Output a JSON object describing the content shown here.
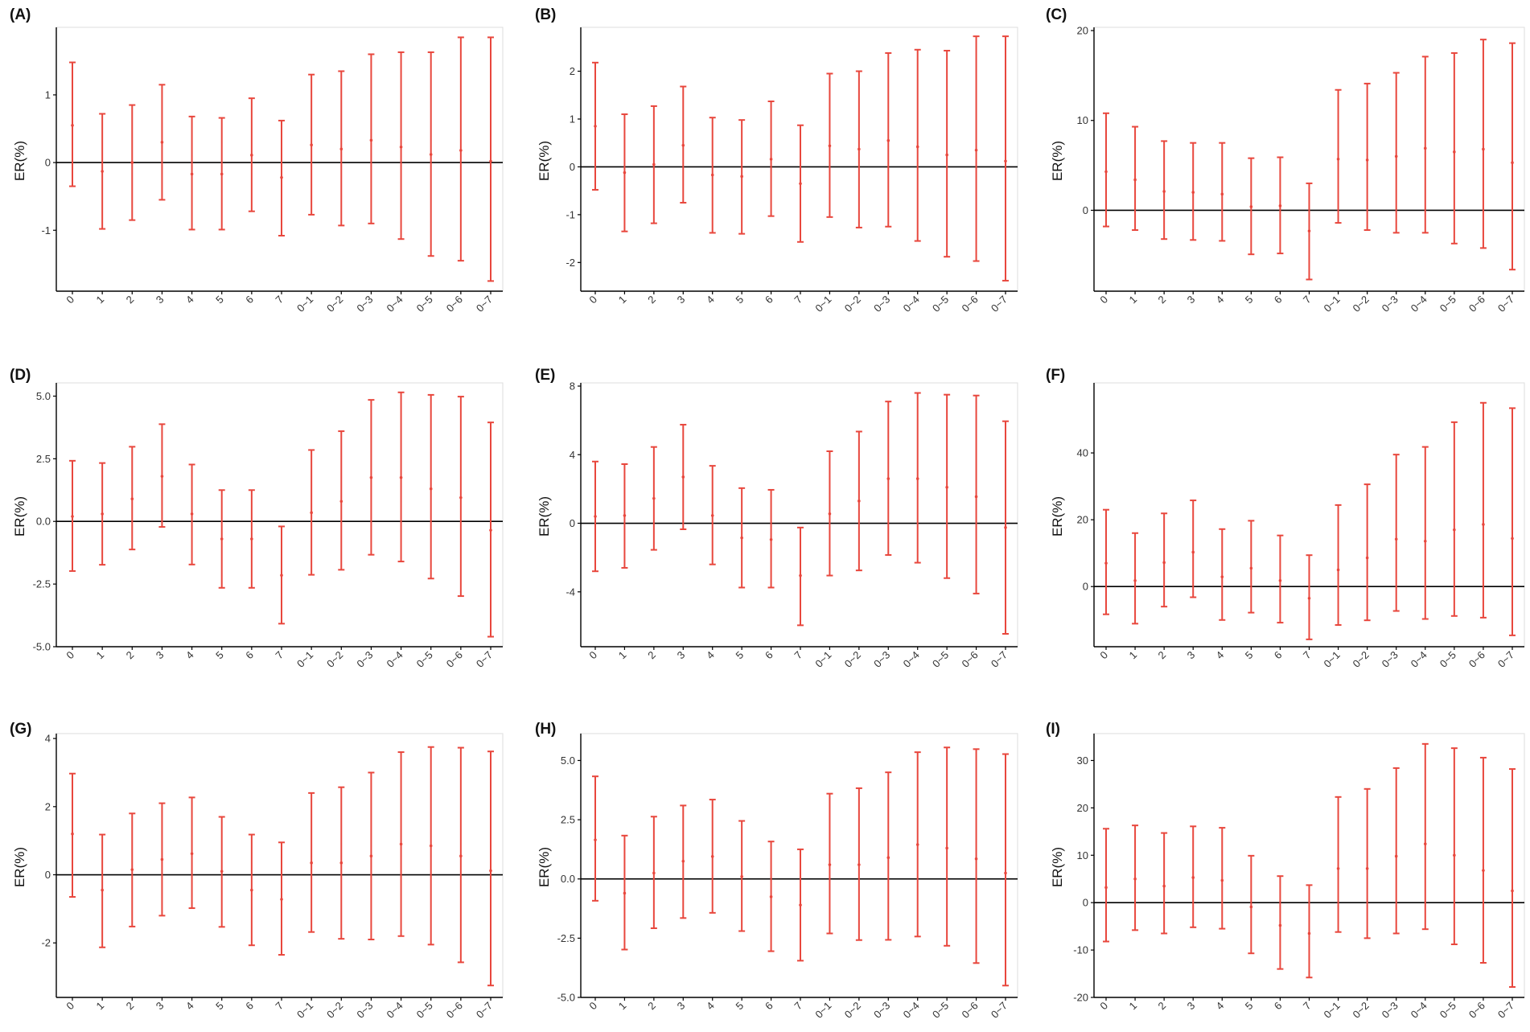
{
  "colors": {
    "error_bar": "#E8473D",
    "zero_line": "#000000",
    "axis": "#000000",
    "panel_border": "#dddddd"
  },
  "chart_data": [
    {
      "type": "errorbar",
      "label": "(A)",
      "ylabel": "ER(%)",
      "categories": [
        "0",
        "1",
        "2",
        "3",
        "4",
        "5",
        "6",
        "7",
        "0~1",
        "0~2",
        "0~3",
        "0~4",
        "0~5",
        "0~6",
        "0~7"
      ],
      "yticks": [
        {
          "v": 1,
          "t": "1"
        },
        {
          "v": 0,
          "t": "0"
        },
        {
          "v": -1,
          "t": "-1"
        }
      ],
      "ylim": [
        -1.9,
        1.95
      ],
      "estimate": [
        0.55,
        -0.13,
        0.0,
        0.3,
        -0.17,
        -0.17,
        0.11,
        -0.22,
        0.26,
        0.2,
        0.33,
        0.23,
        0.12,
        0.18,
        0.02
      ],
      "lower": [
        -0.35,
        -0.98,
        -0.85,
        -0.55,
        -0.99,
        -0.99,
        -0.72,
        -1.08,
        -0.77,
        -0.93,
        -0.9,
        -1.13,
        -1.38,
        -1.45,
        -1.75
      ],
      "upper": [
        1.48,
        0.72,
        0.85,
        1.15,
        0.68,
        0.66,
        0.95,
        0.62,
        1.3,
        1.35,
        1.6,
        1.63,
        1.63,
        1.85,
        1.85
      ]
    },
    {
      "type": "errorbar",
      "label": "(B)",
      "ylabel": "ER(%)",
      "categories": [
        "0",
        "1",
        "2",
        "3",
        "4",
        "5",
        "6",
        "7",
        "0~1",
        "0~2",
        "0~3",
        "0~4",
        "0~5",
        "0~6",
        "0~7"
      ],
      "yticks": [
        {
          "v": 2,
          "t": "2"
        },
        {
          "v": 1,
          "t": "1"
        },
        {
          "v": 0,
          "t": "0"
        },
        {
          "v": -1,
          "t": "-1"
        },
        {
          "v": -2,
          "t": "-2"
        }
      ],
      "ylim": [
        -2.6,
        2.85
      ],
      "estimate": [
        0.85,
        -0.12,
        0.05,
        0.45,
        -0.17,
        -0.2,
        0.16,
        -0.35,
        0.44,
        0.37,
        0.55,
        0.42,
        0.25,
        0.35,
        0.12
      ],
      "lower": [
        -0.48,
        -1.35,
        -1.18,
        -0.75,
        -1.38,
        -1.4,
        -1.03,
        -1.57,
        -1.05,
        -1.27,
        -1.25,
        -1.55,
        -1.88,
        -1.97,
        -2.38
      ],
      "upper": [
        2.18,
        1.1,
        1.27,
        1.68,
        1.03,
        0.98,
        1.37,
        0.87,
        1.95,
        2.0,
        2.38,
        2.45,
        2.43,
        2.73,
        2.73
      ]
    },
    {
      "type": "errorbar",
      "label": "(C)",
      "ylabel": "ER(%)",
      "categories": [
        "0",
        "1",
        "2",
        "3",
        "4",
        "5",
        "6",
        "7",
        "0~1",
        "0~2",
        "0~3",
        "0~4",
        "0~5",
        "0~6",
        "0~7"
      ],
      "yticks": [
        {
          "v": 20,
          "t": "20"
        },
        {
          "v": 10,
          "t": "10"
        },
        {
          "v": 0,
          "t": "0"
        }
      ],
      "ylim": [
        -9.0,
        20.0
      ],
      "estimate": [
        4.3,
        3.4,
        2.1,
        2.0,
        1.8,
        0.4,
        0.5,
        -2.3,
        5.7,
        5.6,
        6.0,
        6.9,
        6.5,
        6.8,
        5.3
      ],
      "lower": [
        -1.8,
        -2.2,
        -3.2,
        -3.3,
        -3.4,
        -4.9,
        -4.8,
        -7.7,
        -1.4,
        -2.2,
        -2.5,
        -2.5,
        -3.7,
        -4.2,
        -6.6
      ],
      "upper": [
        10.8,
        9.3,
        7.7,
        7.5,
        7.5,
        5.8,
        5.9,
        3.0,
        13.4,
        14.1,
        15.3,
        17.1,
        17.5,
        19.0,
        18.6
      ]
    },
    {
      "type": "errorbar",
      "label": "(D)",
      "ylabel": "ER(%)",
      "categories": [
        "0",
        "1",
        "2",
        "3",
        "4",
        "5",
        "6",
        "7",
        "0~1",
        "0~2",
        "0~3",
        "0~4",
        "0~5",
        "0~6",
        "0~7"
      ],
      "yticks": [
        {
          "v": 5,
          "t": "5.0"
        },
        {
          "v": 2.5,
          "t": "2.5"
        },
        {
          "v": 0,
          "t": "0.0"
        },
        {
          "v": -2.5,
          "t": "-2.5"
        },
        {
          "v": -5,
          "t": "-5.0"
        }
      ],
      "ylim": [
        -5.0,
        5.4
      ],
      "estimate": [
        0.2,
        0.3,
        0.9,
        1.8,
        0.3,
        -0.7,
        -0.7,
        -2.15,
        0.35,
        0.8,
        1.75,
        1.75,
        1.3,
        0.95,
        -0.35
      ],
      "lower": [
        -1.98,
        -1.73,
        -1.12,
        -0.22,
        -1.72,
        -2.65,
        -2.65,
        -4.08,
        -2.13,
        -1.93,
        -1.33,
        -1.6,
        -2.28,
        -2.98,
        -4.6
      ],
      "upper": [
        2.42,
        2.33,
        2.98,
        3.88,
        2.27,
        1.25,
        1.25,
        -0.2,
        2.85,
        3.6,
        4.85,
        5.15,
        5.05,
        4.98,
        3.95
      ]
    },
    {
      "type": "errorbar",
      "label": "(E)",
      "ylabel": "ER(%)",
      "categories": [
        "0",
        "1",
        "2",
        "3",
        "4",
        "5",
        "6",
        "7",
        "0~1",
        "0~2",
        "0~3",
        "0~4",
        "0~5",
        "0~6",
        "0~7"
      ],
      "yticks": [
        {
          "v": 8,
          "t": "8"
        },
        {
          "v": 4,
          "t": "4"
        },
        {
          "v": 0,
          "t": "0"
        },
        {
          "v": -4,
          "t": "-4"
        }
      ],
      "ylim": [
        -7.2,
        8.0
      ],
      "estimate": [
        0.4,
        0.45,
        1.45,
        2.7,
        0.45,
        -0.85,
        -0.95,
        -3.05,
        0.55,
        1.3,
        2.6,
        2.6,
        2.1,
        1.55,
        -0.25
      ],
      "lower": [
        -2.8,
        -2.6,
        -1.55,
        -0.35,
        -2.4,
        -3.75,
        -3.75,
        -5.95,
        -3.05,
        -2.75,
        -1.85,
        -2.3,
        -3.2,
        -4.1,
        -6.45
      ],
      "upper": [
        3.6,
        3.45,
        4.45,
        5.75,
        3.35,
        2.05,
        1.95,
        -0.25,
        4.2,
        5.35,
        7.1,
        7.6,
        7.5,
        7.45,
        5.95
      ]
    },
    {
      "type": "errorbar",
      "label": "(F)",
      "ylabel": "ER(%)",
      "categories": [
        "0",
        "1",
        "2",
        "3",
        "4",
        "5",
        "6",
        "7",
        "0~1",
        "0~2",
        "0~3",
        "0~4",
        "0~5",
        "0~6",
        "0~7"
      ],
      "yticks": [
        {
          "v": 40,
          "t": "40"
        },
        {
          "v": 20,
          "t": "20"
        },
        {
          "v": 0,
          "t": "0"
        }
      ],
      "ylim": [
        -18.0,
        60.0
      ],
      "estimate": [
        7.0,
        1.8,
        7.2,
        10.3,
        2.9,
        5.5,
        1.8,
        -3.5,
        5.0,
        8.6,
        14.2,
        13.6,
        17.0,
        18.6,
        14.4
      ],
      "lower": [
        -8.3,
        -11.1,
        -6.0,
        -3.2,
        -10.0,
        -7.8,
        -10.8,
        -15.8,
        -11.5,
        -10.1,
        -7.3,
        -9.7,
        -8.8,
        -9.3,
        -14.6
      ],
      "upper": [
        23.0,
        16.0,
        21.9,
        25.8,
        17.2,
        19.7,
        15.3,
        9.4,
        24.4,
        30.6,
        39.5,
        41.8,
        49.2,
        55.0,
        53.4
      ]
    },
    {
      "type": "errorbar",
      "label": "(G)",
      "ylabel": "ER(%)",
      "categories": [
        "0",
        "1",
        "2",
        "3",
        "4",
        "5",
        "6",
        "7",
        "0~1",
        "0~2",
        "0~3",
        "0~4",
        "0~5",
        "0~6",
        "0~7"
      ],
      "yticks": [
        {
          "v": 4,
          "t": "4"
        },
        {
          "v": 2,
          "t": "2"
        },
        {
          "v": 0,
          "t": "0"
        },
        {
          "v": -2,
          "t": "-2"
        }
      ],
      "ylim": [
        -3.6,
        4.05
      ],
      "estimate": [
        1.2,
        -0.45,
        0.15,
        0.45,
        0.62,
        0.1,
        -0.45,
        -0.72,
        0.35,
        0.35,
        0.55,
        0.9,
        0.85,
        0.55,
        0.12
      ],
      "lower": [
        -0.65,
        -2.13,
        -1.52,
        -1.2,
        -0.98,
        -1.53,
        -2.07,
        -2.35,
        -1.68,
        -1.88,
        -1.9,
        -1.8,
        -2.05,
        -2.57,
        -3.25
      ],
      "upper": [
        2.97,
        1.18,
        1.8,
        2.1,
        2.27,
        1.7,
        1.18,
        0.95,
        2.4,
        2.57,
        3.0,
        3.6,
        3.75,
        3.73,
        3.62
      ]
    },
    {
      "type": "errorbar",
      "label": "(H)",
      "ylabel": "ER(%)",
      "categories": [
        "0",
        "1",
        "2",
        "3",
        "4",
        "5",
        "6",
        "7",
        "0~1",
        "0~2",
        "0~3",
        "0~4",
        "0~5",
        "0~6",
        "0~7"
      ],
      "yticks": [
        {
          "v": 5,
          "t": "5.0"
        },
        {
          "v": 2.5,
          "t": "2.5"
        },
        {
          "v": 0,
          "t": "0.0"
        },
        {
          "v": -2.5,
          "t": "-2.5"
        },
        {
          "v": -5,
          "t": "-5.0"
        }
      ],
      "ylim": [
        -5.0,
        6.0
      ],
      "estimate": [
        1.65,
        -0.6,
        0.25,
        0.75,
        0.95,
        0.1,
        -0.75,
        -1.1,
        0.6,
        0.6,
        0.9,
        1.45,
        1.3,
        0.85,
        0.25
      ],
      "lower": [
        -0.92,
        -2.98,
        -2.08,
        -1.65,
        -1.43,
        -2.2,
        -3.05,
        -3.45,
        -2.3,
        -2.58,
        -2.57,
        -2.43,
        -2.82,
        -3.55,
        -4.5
      ],
      "upper": [
        4.33,
        1.83,
        2.63,
        3.1,
        3.35,
        2.45,
        1.58,
        1.25,
        3.6,
        3.83,
        4.5,
        5.35,
        5.55,
        5.48,
        5.27
      ]
    },
    {
      "type": "errorbar",
      "label": "(I)",
      "ylabel": "ER(%)",
      "categories": [
        "0",
        "1",
        "2",
        "3",
        "4",
        "5",
        "6",
        "7",
        "0~1",
        "0~2",
        "0~3",
        "0~4",
        "0~5",
        "0~6",
        "0~7"
      ],
      "yticks": [
        {
          "v": 30,
          "t": "30"
        },
        {
          "v": 20,
          "t": "20"
        },
        {
          "v": 10,
          "t": "10"
        },
        {
          "v": 0,
          "t": "0"
        },
        {
          "v": -10,
          "t": "-10"
        },
        {
          "v": -20,
          "t": "-20"
        }
      ],
      "ylim": [
        -20.0,
        35.0
      ],
      "estimate": [
        3.2,
        5.0,
        3.5,
        5.3,
        4.7,
        -0.9,
        -4.8,
        -6.5,
        7.2,
        7.2,
        9.8,
        12.4,
        10.0,
        6.8,
        2.5
      ],
      "lower": [
        -8.2,
        -5.8,
        -6.5,
        -5.2,
        -5.5,
        -10.7,
        -14.0,
        -15.8,
        -6.2,
        -7.5,
        -6.5,
        -5.6,
        -8.8,
        -12.7,
        -17.8
      ],
      "upper": [
        15.6,
        16.3,
        14.7,
        16.1,
        15.8,
        9.9,
        5.6,
        3.7,
        22.3,
        24.0,
        28.4,
        33.5,
        32.6,
        30.6,
        28.2
      ]
    }
  ]
}
